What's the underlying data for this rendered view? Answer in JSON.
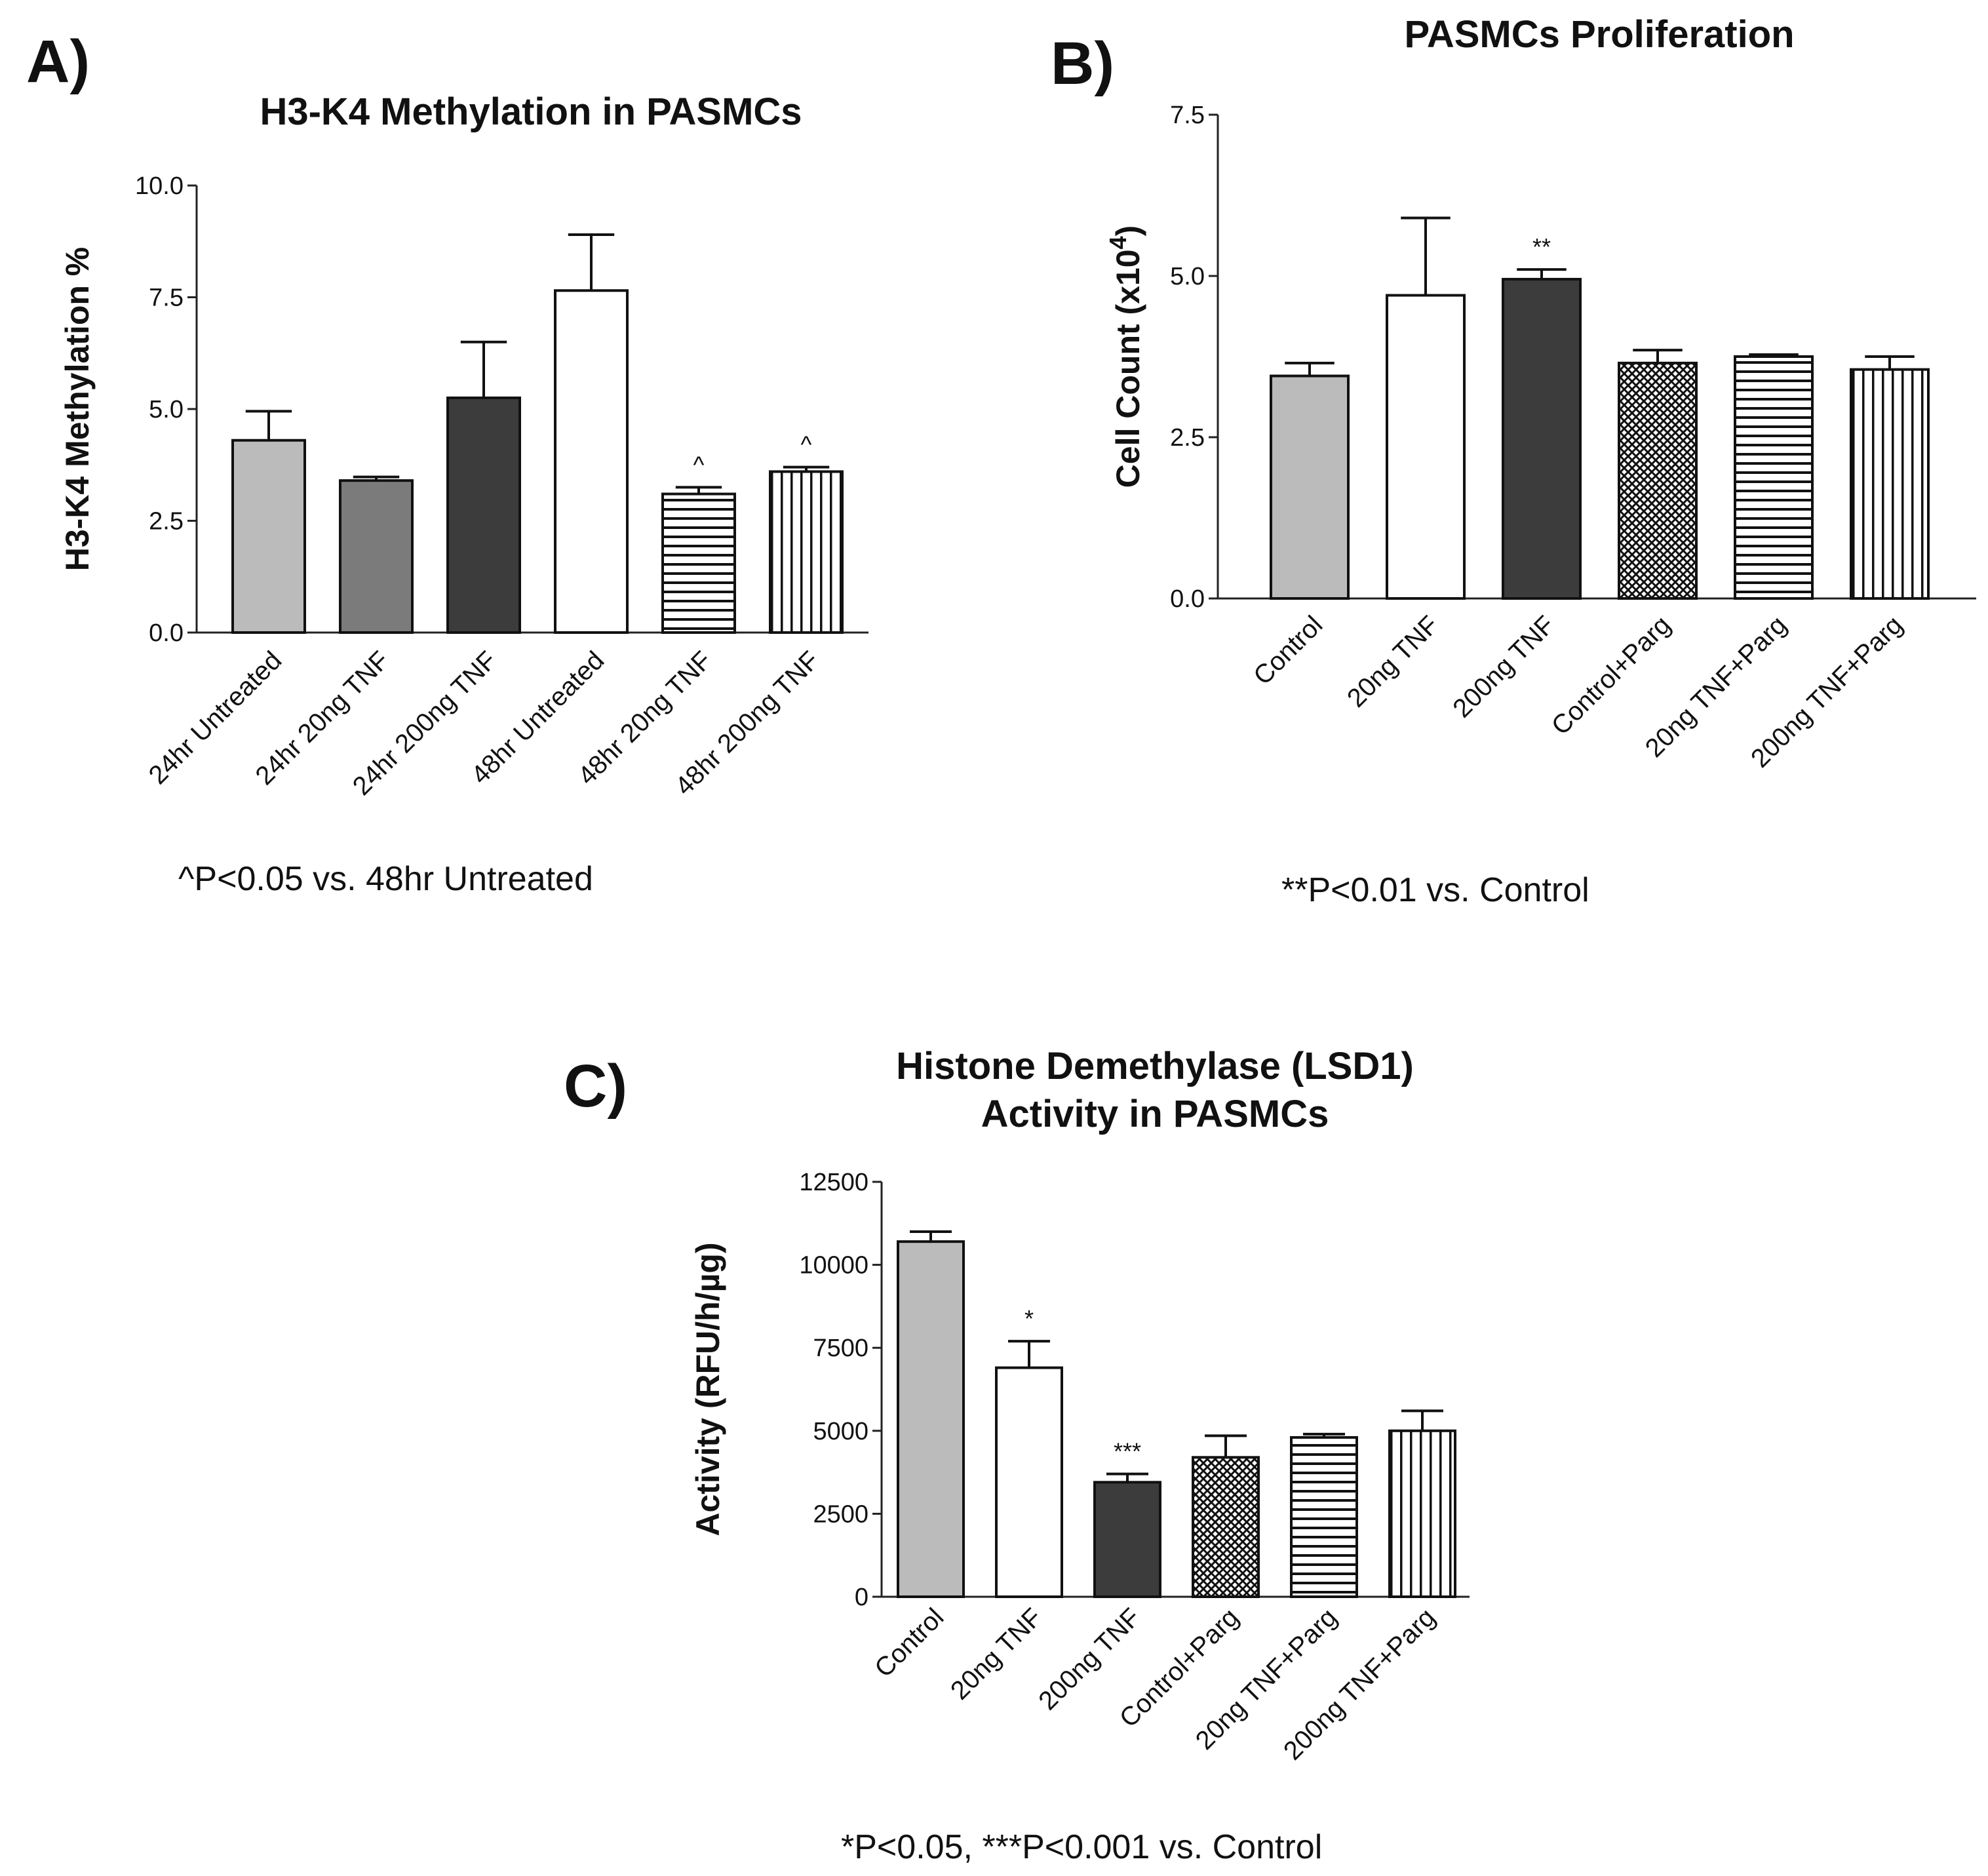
{
  "chart_data": [
    {
      "panel": "A)",
      "type": "bar",
      "title": "H3-K4 Methylation in PASMCs",
      "xlabel": "",
      "ylabel": "H3-K4 Methylation %",
      "ylim": [
        0,
        10
      ],
      "yticks": [
        "0.0",
        "2.5",
        "5.0",
        "7.5",
        "10.0"
      ],
      "categories": [
        "24hr Untreated",
        "24hr 20ng TNF",
        "24hr 200ng TNF",
        "48hr Untreated",
        "48hr 20ng TNF",
        "48hr 200ng TNF"
      ],
      "values": [
        4.3,
        3.4,
        5.25,
        7.65,
        3.1,
        3.6
      ],
      "errors": [
        0.65,
        0.08,
        1.25,
        1.25,
        0.15,
        0.1
      ],
      "fills": [
        "light-gray",
        "mid-gray",
        "dark-gray",
        "white",
        "horizontal-lines",
        "vertical-lines"
      ],
      "annotations": [
        "",
        "",
        "",
        "",
        "^",
        "^"
      ],
      "footnote": "^P<0.05 vs. 48hr Untreated"
    },
    {
      "panel": "B)",
      "type": "bar",
      "title": "PASMCs Proliferation",
      "xlabel": "",
      "ylabel": "Cell Count (x10",
      "ylabel_exponent": "4",
      "ylabel_suffix": ")",
      "ylim": [
        0,
        7.5
      ],
      "yticks": [
        "0.0",
        "2.5",
        "5.0",
        "7.5"
      ],
      "categories": [
        "Control",
        "20ng TNF",
        "200ng TNF",
        "Control+Parg",
        "20ng TNF+Parg",
        "200ng TNF+Parg"
      ],
      "values": [
        3.45,
        4.7,
        4.95,
        3.65,
        3.75,
        3.55
      ],
      "errors": [
        0.2,
        1.2,
        0.15,
        0.2,
        0.03,
        0.2
      ],
      "fills": [
        "light-gray",
        "white",
        "dark-gray",
        "crosshatch",
        "horizontal-lines",
        "vertical-lines"
      ],
      "annotations": [
        "",
        "",
        "**",
        "",
        "",
        ""
      ],
      "footnote": "**P<0.01 vs. Control"
    },
    {
      "panel": "C)",
      "type": "bar",
      "title": [
        "Histone Demethylase (LSD1)",
        "Activity in PASMCs"
      ],
      "xlabel": "",
      "ylabel": "Activity (RFU/h/µg)",
      "ylim": [
        0,
        12500
      ],
      "yticks": [
        "0",
        "2500",
        "5000",
        "7500",
        "10000",
        "12500"
      ],
      "categories": [
        "Control",
        "20ng TNF",
        "200ng TNF",
        "Control+Parg",
        "20ng TNF+Parg",
        "200ng TNF+Parg"
      ],
      "values": [
        10700,
        6900,
        3450,
        4200,
        4800,
        5000
      ],
      "errors": [
        300,
        800,
        250,
        650,
        100,
        600
      ],
      "fills": [
        "light-gray",
        "white",
        "dark-gray",
        "crosshatch",
        "horizontal-lines",
        "vertical-lines"
      ],
      "annotations": [
        "",
        "*",
        "***",
        "",
        "",
        ""
      ],
      "footnote": "*P<0.05, ***P<0.001 vs. Control"
    }
  ]
}
